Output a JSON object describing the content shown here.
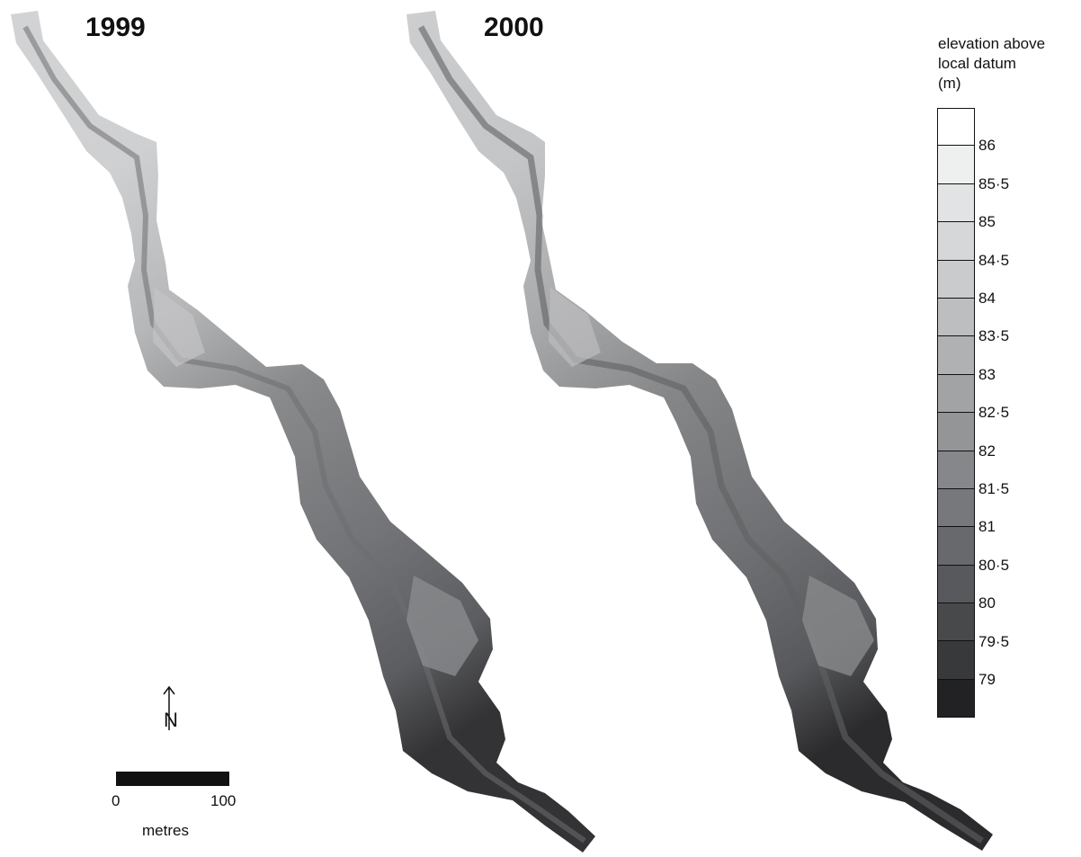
{
  "maps": [
    {
      "year": "1999"
    },
    {
      "year": "2000"
    }
  ],
  "legend": {
    "title_lines": [
      "elevation above",
      "local datum",
      "(m)"
    ],
    "classes": [
      {
        "color": "#ffffff"
      },
      {
        "color": "#eef0ef"
      },
      {
        "color": "#e2e3e4"
      },
      {
        "color": "#d6d7d8"
      },
      {
        "color": "#cacbcc"
      },
      {
        "color": "#bdbec0"
      },
      {
        "color": "#b0b1b3"
      },
      {
        "color": "#a2a3a5"
      },
      {
        "color": "#949597"
      },
      {
        "color": "#86878a"
      },
      {
        "color": "#77787b"
      },
      {
        "color": "#68696c"
      },
      {
        "color": "#58595c"
      },
      {
        "color": "#48494b"
      },
      {
        "color": "#38393b"
      },
      {
        "color": "#222224"
      }
    ],
    "tick_labels": [
      "86",
      "85·5",
      "85",
      "84·5",
      "84",
      "83·5",
      "83",
      "82·5",
      "82",
      "81·5",
      "81",
      "80·5",
      "80",
      "79·5",
      "79"
    ]
  },
  "scale_bar": {
    "start_label": "0",
    "end_label": "100",
    "unit": "metres"
  },
  "north_arrow": {
    "label": "N"
  }
}
